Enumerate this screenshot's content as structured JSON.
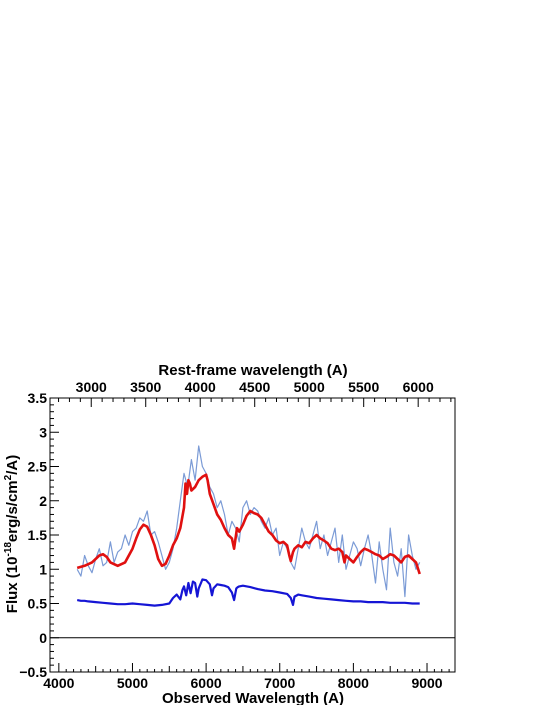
{
  "chart_data": {
    "type": "line",
    "xlabel": "Observed Wavelength (A)",
    "ylabel": "Flux (10^-18 erg/s/cm^2/A)",
    "ylabel_parts": {
      "a": "Flux (10",
      "exp1": "-18",
      "b": "erg/s/cm",
      "exp2": "2",
      "c": "/A)"
    },
    "top_xlabel": "Rest-frame wavelength (A)",
    "xlim": [
      3880,
      9380
    ],
    "ylim": [
      -0.5,
      3.5
    ],
    "x_ticks": [
      4000,
      5000,
      6000,
      7000,
      8000,
      9000
    ],
    "y_ticks": [
      -0.5,
      0,
      0.5,
      1,
      1.5,
      2,
      2.5,
      3,
      3.5
    ],
    "y_tick_labels": [
      "−0.5",
      "0",
      "0.5",
      "1",
      "1.5",
      "2",
      "2.5",
      "3",
      "3.5"
    ],
    "top_ticks": [
      3000,
      3500,
      4000,
      4500,
      5000,
      5500,
      6000
    ],
    "redshift_factor": 1.48,
    "zero_line": true,
    "series": [
      {
        "color": "#7b9bd6",
        "role": "observed spectrum",
        "x": [
          4250,
          4300,
          4350,
          4400,
          4450,
          4500,
          4550,
          4600,
          4650,
          4700,
          4750,
          4800,
          4850,
          4900,
          4950,
          5000,
          5050,
          5100,
          5150,
          5200,
          5250,
          5300,
          5350,
          5400,
          5450,
          5500,
          5550,
          5600,
          5650,
          5700,
          5750,
          5800,
          5850,
          5900,
          5950,
          6000,
          6050,
          6100,
          6150,
          6200,
          6250,
          6300,
          6350,
          6400,
          6450,
          6500,
          6550,
          6600,
          6650,
          6700,
          6750,
          6800,
          6850,
          6900,
          6950,
          7000,
          7050,
          7100,
          7150,
          7200,
          7250,
          7300,
          7350,
          7400,
          7450,
          7500,
          7550,
          7600,
          7650,
          7700,
          7750,
          7800,
          7850,
          7900,
          7950,
          8000,
          8050,
          8100,
          8150,
          8200,
          8250,
          8300,
          8350,
          8400,
          8450,
          8500,
          8550,
          8600,
          8650,
          8700,
          8750,
          8800,
          8850,
          8900
        ],
        "y": [
          1.0,
          0.9,
          1.2,
          1.05,
          0.95,
          1.15,
          1.3,
          1.05,
          1.1,
          1.4,
          1.1,
          1.25,
          1.3,
          1.5,
          1.35,
          1.55,
          1.6,
          1.75,
          1.7,
          1.85,
          1.5,
          1.55,
          1.4,
          1.2,
          1.0,
          1.1,
          1.3,
          1.6,
          2.0,
          2.4,
          2.2,
          2.6,
          2.3,
          2.8,
          2.5,
          2.4,
          2.2,
          2.1,
          1.9,
          2.0,
          1.8,
          1.5,
          1.7,
          1.6,
          1.4,
          1.9,
          2.0,
          1.8,
          1.9,
          1.85,
          1.7,
          1.6,
          1.75,
          1.5,
          1.6,
          1.2,
          1.4,
          1.3,
          1.1,
          1.0,
          1.3,
          1.6,
          1.4,
          1.3,
          1.5,
          1.7,
          1.3,
          1.5,
          1.2,
          1.4,
          1.6,
          1.1,
          1.5,
          1.0,
          1.2,
          1.4,
          1.3,
          1.05,
          1.3,
          1.5,
          1.2,
          0.8,
          1.4,
          1.0,
          0.7,
          1.6,
          1.1,
          0.9,
          1.3,
          0.6,
          1.5,
          1.2,
          1.0,
          1.1
        ]
      },
      {
        "color": "#e01010",
        "role": "model fit",
        "x": [
          4250,
          4350,
          4450,
          4550,
          4600,
          4650,
          4700,
          4800,
          4900,
          5000,
          5050,
          5100,
          5150,
          5200,
          5250,
          5300,
          5350,
          5400,
          5450,
          5500,
          5550,
          5600,
          5650,
          5700,
          5720,
          5740,
          5760,
          5780,
          5800,
          5850,
          5900,
          5950,
          6000,
          6020,
          6050,
          6100,
          6150,
          6200,
          6250,
          6300,
          6350,
          6380,
          6420,
          6450,
          6500,
          6550,
          6600,
          6650,
          6700,
          6750,
          6800,
          6850,
          6900,
          6950,
          7000,
          7050,
          7100,
          7130,
          7150,
          7180,
          7200,
          7250,
          7300,
          7350,
          7400,
          7450,
          7500,
          7550,
          7600,
          7650,
          7700,
          7750,
          7800,
          7850,
          7880,
          7900,
          7950,
          8000,
          8050,
          8100,
          8150,
          8200,
          8250,
          8300,
          8350,
          8400,
          8450,
          8500,
          8550,
          8600,
          8650,
          8700,
          8750,
          8800,
          8850,
          8900
        ],
        "y": [
          1.02,
          1.05,
          1.1,
          1.2,
          1.22,
          1.18,
          1.1,
          1.05,
          1.1,
          1.3,
          1.45,
          1.58,
          1.65,
          1.62,
          1.5,
          1.35,
          1.15,
          1.05,
          1.08,
          1.2,
          1.35,
          1.45,
          1.6,
          1.9,
          2.25,
          2.1,
          2.3,
          2.25,
          2.15,
          2.2,
          2.3,
          2.35,
          2.38,
          2.3,
          2.1,
          1.95,
          1.8,
          1.72,
          1.6,
          1.5,
          1.45,
          1.3,
          1.6,
          1.55,
          1.65,
          1.78,
          1.85,
          1.82,
          1.8,
          1.75,
          1.65,
          1.55,
          1.5,
          1.42,
          1.38,
          1.4,
          1.35,
          1.2,
          1.12,
          1.25,
          1.3,
          1.35,
          1.32,
          1.4,
          1.38,
          1.45,
          1.5,
          1.45,
          1.42,
          1.38,
          1.3,
          1.28,
          1.3,
          1.25,
          1.1,
          1.2,
          1.15,
          1.1,
          1.18,
          1.25,
          1.3,
          1.28,
          1.25,
          1.22,
          1.2,
          1.15,
          1.18,
          1.22,
          1.2,
          1.15,
          1.1,
          1.18,
          1.2,
          1.15,
          1.1,
          0.93
        ]
      },
      {
        "color": "#1515d5",
        "role": "error spectrum",
        "x": [
          4250,
          4300,
          4350,
          4400,
          4500,
          4600,
          4700,
          4800,
          4900,
          5000,
          5100,
          5200,
          5300,
          5400,
          5500,
          5550,
          5600,
          5650,
          5680,
          5700,
          5730,
          5760,
          5790,
          5820,
          5850,
          5880,
          5900,
          5950,
          6000,
          6050,
          6080,
          6100,
          6150,
          6200,
          6250,
          6300,
          6350,
          6380,
          6410,
          6430,
          6450,
          6500,
          6600,
          6700,
          6800,
          6900,
          7000,
          7100,
          7150,
          7180,
          7200,
          7250,
          7300,
          7400,
          7500,
          7600,
          7700,
          7800,
          7900,
          8000,
          8100,
          8200,
          8300,
          8400,
          8500,
          8600,
          8700,
          8800,
          8900
        ],
        "y": [
          0.55,
          0.54,
          0.54,
          0.53,
          0.52,
          0.51,
          0.5,
          0.49,
          0.49,
          0.5,
          0.49,
          0.48,
          0.47,
          0.48,
          0.5,
          0.58,
          0.63,
          0.56,
          0.7,
          0.75,
          0.62,
          0.8,
          0.65,
          0.82,
          0.8,
          0.6,
          0.72,
          0.85,
          0.84,
          0.78,
          0.62,
          0.72,
          0.78,
          0.77,
          0.76,
          0.74,
          0.66,
          0.55,
          0.72,
          0.74,
          0.75,
          0.76,
          0.74,
          0.71,
          0.69,
          0.68,
          0.66,
          0.64,
          0.58,
          0.48,
          0.6,
          0.63,
          0.62,
          0.6,
          0.58,
          0.57,
          0.56,
          0.55,
          0.54,
          0.53,
          0.53,
          0.52,
          0.52,
          0.52,
          0.51,
          0.51,
          0.51,
          0.5,
          0.5
        ]
      }
    ]
  }
}
